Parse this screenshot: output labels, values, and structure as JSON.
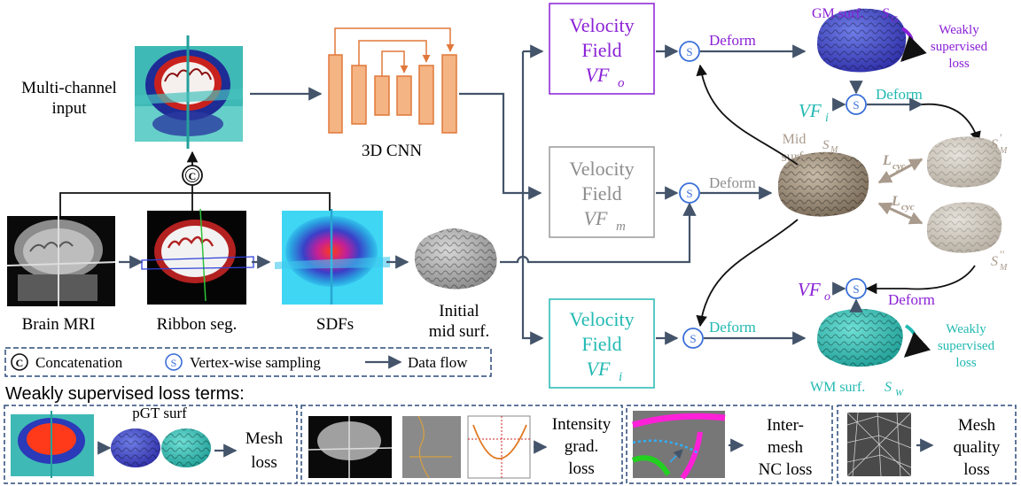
{
  "colors": {
    "purple": "#8a1fd6",
    "cyan": "#22b9b2",
    "gray_box": "#9a9a9a",
    "taupe": "#a89a8c",
    "cnn_orange": "#e0783a",
    "flow": "#44546a",
    "sample_blue": "#3a6fd8",
    "dash_border": "#2c4a7a"
  },
  "inputs": {
    "multi_channel": [
      "Multi-channel",
      "input"
    ],
    "brain_mri": "Brain MRI",
    "ribbon_seg": "Ribbon seg.",
    "sdfs": "SDFs",
    "initial_mid": [
      "Initial",
      "mid surf."
    ],
    "concat_symbol": "C"
  },
  "cnn": {
    "label": "3D CNN"
  },
  "velocity_fields": {
    "top": {
      "line1": "Velocity",
      "line2": "Field",
      "var": "VF",
      "sub": "o"
    },
    "mid": {
      "line1": "Velocity",
      "line2": "Field",
      "var": "VF",
      "sub": "m"
    },
    "bot": {
      "line1": "Velocity",
      "line2": "Field",
      "var": "VF",
      "sub": "i"
    }
  },
  "sample_symbol": "S",
  "deform_label": "Deform",
  "surfaces": {
    "gm": {
      "label": "GM surf. ",
      "var": "S",
      "sub": "G"
    },
    "mid": {
      "label": [
        "Mid",
        "surf."
      ],
      "var": "S",
      "sub": "M"
    },
    "wm": {
      "label": "WM surf. ",
      "var": "S",
      "sub": "W"
    },
    "sm_prime": {
      "var": "S",
      "sub": "M",
      "sup": "′"
    },
    "sm_dprime": {
      "var": "S",
      "sub": "M",
      "sup": "′′"
    }
  },
  "cross_labels": {
    "vfi": {
      "var": "VF",
      "sub": "i"
    },
    "vfo": {
      "var": "VF",
      "sub": "o"
    }
  },
  "cycle_loss": {
    "var": "L",
    "sub": "cyc"
  },
  "weak_loss": [
    "Weakly",
    "supervised",
    "loss"
  ],
  "legend": {
    "concatenation": "Concatenation",
    "sampling": "Vertex-wise sampling",
    "data_flow": "Data flow"
  },
  "bottom": {
    "title": "Weakly supervised loss terms:",
    "pgt": "pGT surf",
    "mesh_loss": [
      "Mesh",
      "loss"
    ],
    "intensity_loss": [
      "Intensity",
      "grad.",
      "loss"
    ],
    "nc_loss": [
      "Inter-",
      "mesh",
      "NC loss"
    ],
    "quality_loss": [
      "Mesh",
      "quality",
      "loss"
    ]
  }
}
